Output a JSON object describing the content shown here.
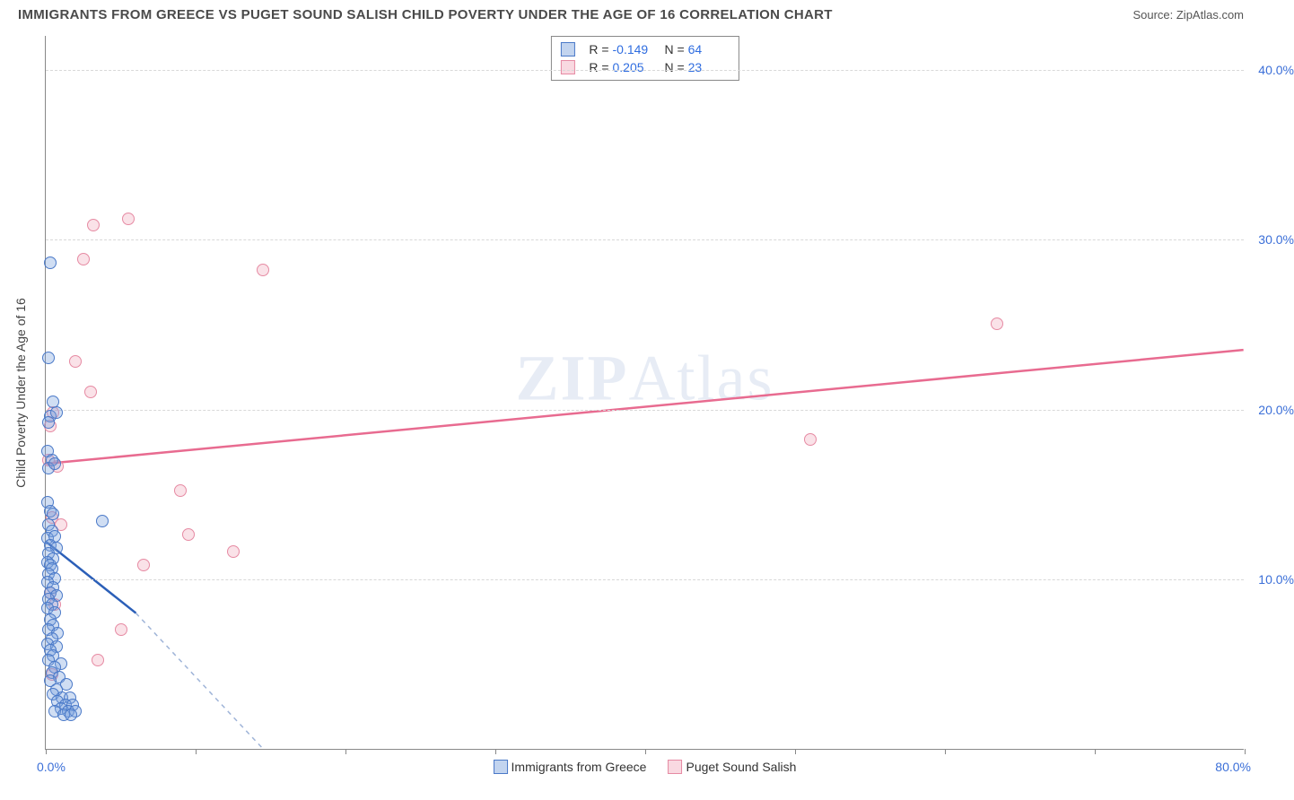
{
  "title": "IMMIGRANTS FROM GREECE VS PUGET SOUND SALISH CHILD POVERTY UNDER THE AGE OF 16 CORRELATION CHART",
  "source": "Source: ZipAtlas.com",
  "watermark": {
    "bold": "ZIP",
    "thin": "Atlas"
  },
  "y_axis_title": "Child Poverty Under the Age of 16",
  "x_axis": {
    "min": 0.0,
    "max": 80.0,
    "label_left": "0.0%",
    "label_right": "80.0%",
    "tick_positions_pct": [
      0,
      12.5,
      25,
      37.5,
      50,
      62.5,
      75,
      87.5,
      100
    ]
  },
  "y_axis": {
    "min": 0.0,
    "max": 42.0,
    "gridlines": [
      {
        "value": 10.0,
        "label": "10.0%"
      },
      {
        "value": 20.0,
        "label": "20.0%"
      },
      {
        "value": 30.0,
        "label": "30.0%"
      },
      {
        "value": 40.0,
        "label": "40.0%"
      }
    ]
  },
  "legend_top": {
    "rows": [
      {
        "swatch": "blue",
        "r_label": "R =",
        "r_value": "-0.149",
        "n_label": "N =",
        "n_value": "64"
      },
      {
        "swatch": "pink",
        "r_label": "R =",
        "r_value": "0.205",
        "n_label": "N =",
        "n_value": "23"
      }
    ]
  },
  "legend_bottom": {
    "items": [
      {
        "swatch": "blue",
        "label": "Immigrants from Greece"
      },
      {
        "swatch": "pink",
        "label": "Puget Sound Salish"
      }
    ]
  },
  "colors": {
    "blue_stroke": "#2b5fb8",
    "blue_fill": "rgba(120,160,220,0.35)",
    "pink_stroke": "#e86b90",
    "pink_fill": "rgba(240,160,180,0.3)",
    "grid": "#d8d8d8",
    "axis": "#888888",
    "tick_text": "#3b6fd8"
  },
  "trend_lines": {
    "blue": {
      "x1": 0.0,
      "y1": 12.2,
      "x2": 6.0,
      "y2": 8.0,
      "dash_extend_x": 14.5,
      "dash_extend_y": 0.0
    },
    "pink": {
      "x1": 0.0,
      "y1": 16.8,
      "x2": 80.0,
      "y2": 23.5
    }
  },
  "series": {
    "blue": [
      [
        0.3,
        28.6
      ],
      [
        0.2,
        23.0
      ],
      [
        0.5,
        20.4
      ],
      [
        0.3,
        19.6
      ],
      [
        0.2,
        19.2
      ],
      [
        0.7,
        19.8
      ],
      [
        0.1,
        17.5
      ],
      [
        0.4,
        17.0
      ],
      [
        0.2,
        16.5
      ],
      [
        0.6,
        16.8
      ],
      [
        0.1,
        14.5
      ],
      [
        0.3,
        14.0
      ],
      [
        0.5,
        13.8
      ],
      [
        0.2,
        13.2
      ],
      [
        3.8,
        13.4
      ],
      [
        0.4,
        12.8
      ],
      [
        0.1,
        12.4
      ],
      [
        0.6,
        12.5
      ],
      [
        0.3,
        12.0
      ],
      [
        0.7,
        11.8
      ],
      [
        0.2,
        11.5
      ],
      [
        0.5,
        11.2
      ],
      [
        0.1,
        11.0
      ],
      [
        0.3,
        10.8
      ],
      [
        0.4,
        10.6
      ],
      [
        0.2,
        10.3
      ],
      [
        0.6,
        10.0
      ],
      [
        0.1,
        9.8
      ],
      [
        0.5,
        9.5
      ],
      [
        0.3,
        9.2
      ],
      [
        0.7,
        9.0
      ],
      [
        0.2,
        8.8
      ],
      [
        0.4,
        8.5
      ],
      [
        0.1,
        8.3
      ],
      [
        0.6,
        8.0
      ],
      [
        0.3,
        7.6
      ],
      [
        0.5,
        7.3
      ],
      [
        0.2,
        7.0
      ],
      [
        0.8,
        6.8
      ],
      [
        0.4,
        6.5
      ],
      [
        0.1,
        6.2
      ],
      [
        0.7,
        6.0
      ],
      [
        0.3,
        5.8
      ],
      [
        0.5,
        5.5
      ],
      [
        0.2,
        5.2
      ],
      [
        1.0,
        5.0
      ],
      [
        0.6,
        4.8
      ],
      [
        0.4,
        4.5
      ],
      [
        0.9,
        4.2
      ],
      [
        0.3,
        4.0
      ],
      [
        1.4,
        3.8
      ],
      [
        0.7,
        3.5
      ],
      [
        0.5,
        3.2
      ],
      [
        1.1,
        3.0
      ],
      [
        1.6,
        3.0
      ],
      [
        0.8,
        2.8
      ],
      [
        1.3,
        2.6
      ],
      [
        1.8,
        2.6
      ],
      [
        1.0,
        2.4
      ],
      [
        1.5,
        2.2
      ],
      [
        2.0,
        2.2
      ],
      [
        0.6,
        2.2
      ],
      [
        1.2,
        2.0
      ],
      [
        1.7,
        2.0
      ]
    ],
    "pink": [
      [
        3.2,
        30.8
      ],
      [
        5.5,
        31.2
      ],
      [
        2.5,
        28.8
      ],
      [
        14.5,
        28.2
      ],
      [
        63.5,
        25.0
      ],
      [
        2.0,
        22.8
      ],
      [
        3.0,
        21.0
      ],
      [
        0.5,
        19.8
      ],
      [
        0.3,
        19.0
      ],
      [
        51.0,
        18.2
      ],
      [
        0.2,
        17.0
      ],
      [
        0.8,
        16.6
      ],
      [
        9.0,
        15.2
      ],
      [
        0.4,
        13.6
      ],
      [
        1.0,
        13.2
      ],
      [
        9.5,
        12.6
      ],
      [
        12.5,
        11.6
      ],
      [
        6.5,
        10.8
      ],
      [
        0.3,
        9.2
      ],
      [
        0.6,
        8.5
      ],
      [
        5.0,
        7.0
      ],
      [
        3.5,
        5.2
      ],
      [
        0.4,
        4.4
      ]
    ]
  }
}
